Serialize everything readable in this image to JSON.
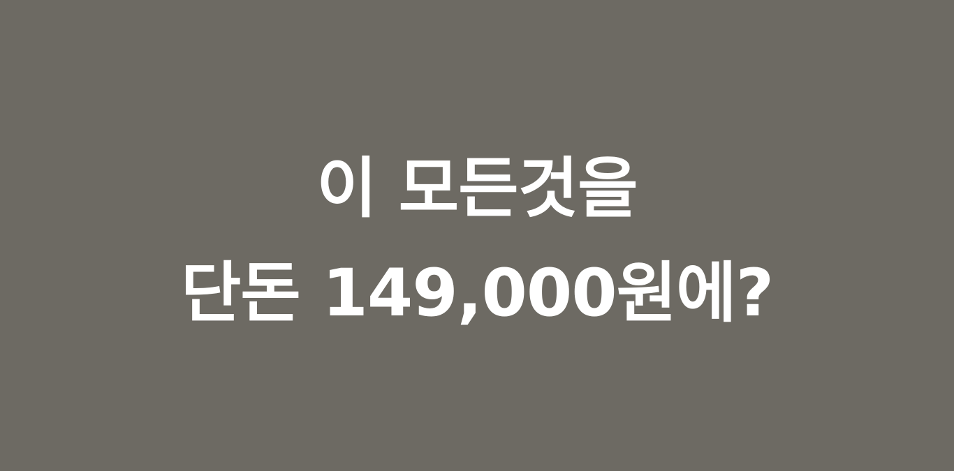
{
  "slide": {
    "line_1": "이 모든것을",
    "line_2": "단돈 149,000원에?",
    "background_color": "#6d6a63",
    "text_color": "#ffffff"
  }
}
